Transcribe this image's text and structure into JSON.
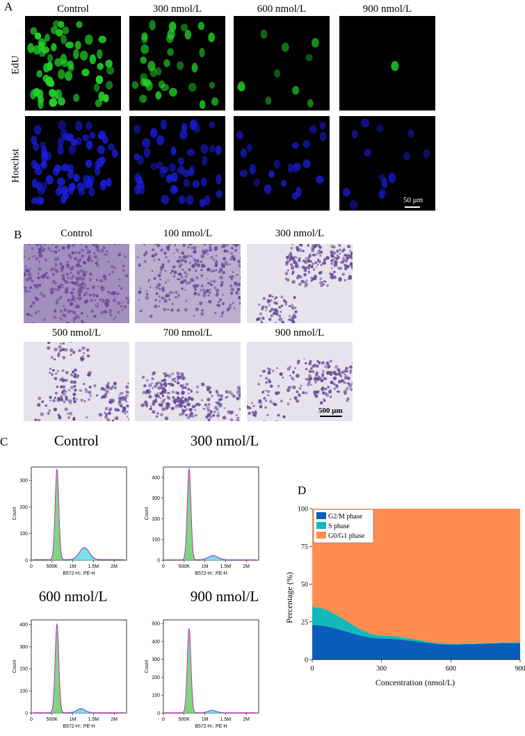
{
  "panel_letters": {
    "a": "A",
    "b": "B",
    "c": "C",
    "d": "D"
  },
  "panel_a": {
    "columns": [
      "Control",
      "300 nmol/L",
      "600 nmol/L",
      "900 nmol/L"
    ],
    "rows": [
      "EdU",
      "Hoechst"
    ],
    "scale_bar": "50 μm",
    "colors": {
      "edu": "#22d42a",
      "hoechst": "#1a1ee0"
    }
  },
  "panel_b": {
    "labels": [
      "Control",
      "100 nmol/L",
      "300 nmol/L",
      "500 nmol/L",
      "700 nmol/L",
      "900 nmol/L"
    ],
    "scale_bar": "500 μm",
    "colors": {
      "stain": "#6b4a99",
      "background": "#e6e3ec"
    }
  },
  "panel_c": {
    "titles": [
      "Control",
      "300 nmol/L",
      "600 nmol/L",
      "900 nmol/L"
    ],
    "xlabel": "B572-H:: PE-H",
    "ylabel": "Count",
    "x_ticks": [
      "0",
      "500K",
      "1M",
      "1.5M",
      "2M"
    ],
    "y_ticks": [
      [
        "0",
        "100",
        "200",
        "300"
      ],
      [
        "0",
        "100",
        "200",
        "300",
        "400"
      ],
      [
        "0",
        "100",
        "200",
        "300",
        "400"
      ],
      [
        "0",
        "100",
        "200",
        "300",
        "400",
        "500"
      ]
    ],
    "colors": {
      "g1": "#7fd67f",
      "s": "#7fe0e8",
      "fit": "#d020d0"
    }
  },
  "chart_data": {
    "type": "area",
    "title": "",
    "xlabel": "Concentration (nmol/L)",
    "ylabel": "Percentage (%)",
    "x": [
      0,
      300,
      600,
      900
    ],
    "ylim": [
      0,
      100
    ],
    "xlim": [
      0,
      900
    ],
    "x_ticks": [
      "0",
      "300",
      "600",
      "900"
    ],
    "y_ticks": [
      "0",
      "25",
      "50",
      "75",
      "100"
    ],
    "legend_position": "top-left",
    "series": [
      {
        "name": "G2/M phase",
        "values": [
          23,
          14,
          10,
          11
        ],
        "color": "#0a5db8"
      },
      {
        "name": "S phase",
        "values": [
          12,
          2,
          0.5,
          0.5
        ],
        "color": "#13b9b9"
      },
      {
        "name": "G0/G1 phase",
        "values": [
          65,
          84,
          89.5,
          88.5
        ],
        "color": "#ff8c50"
      }
    ]
  }
}
